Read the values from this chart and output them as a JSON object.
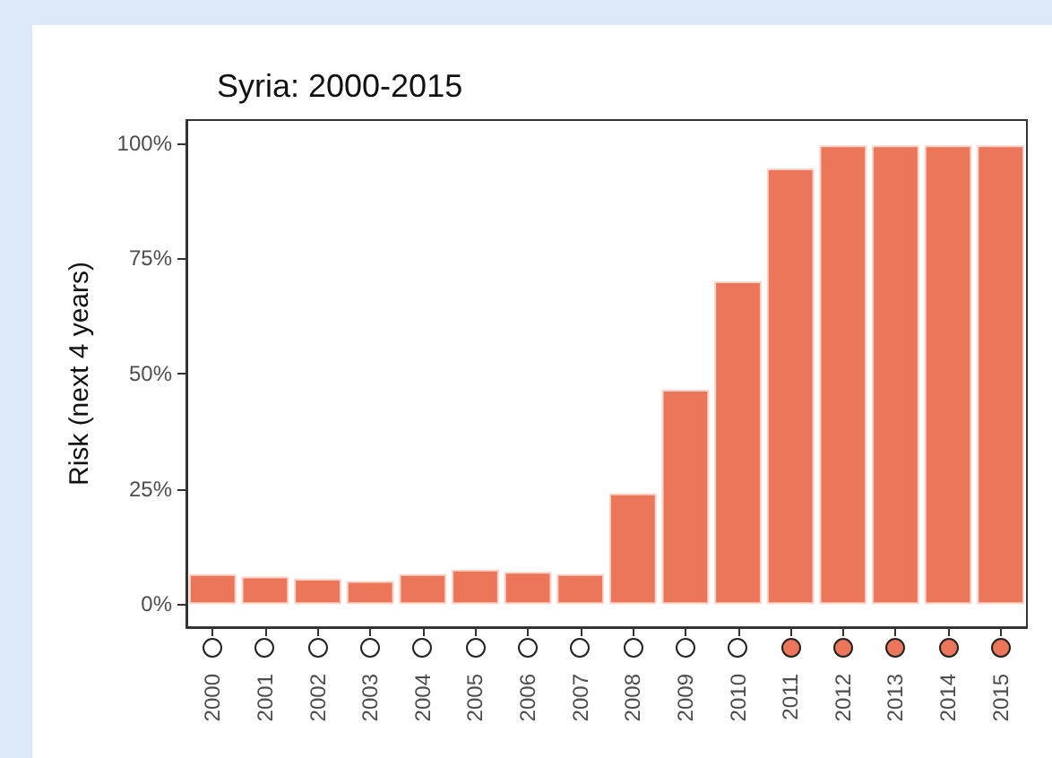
{
  "chart_data": {
    "type": "bar",
    "title": "Syria: 2000-2015",
    "ylabel": "Risk (next 4 years)",
    "categories": [
      "2000",
      "2001",
      "2002",
      "2003",
      "2004",
      "2005",
      "2006",
      "2007",
      "2008",
      "2009",
      "2010",
      "2011",
      "2012",
      "2013",
      "2014",
      "2015"
    ],
    "values": [
      6.5,
      6,
      5.5,
      5,
      6.5,
      7.5,
      7,
      6.5,
      24,
      46.5,
      70,
      94.5,
      99.5,
      99.5,
      99.5,
      99.5
    ],
    "color": "#eb7659",
    "ylim": [
      -5,
      105
    ],
    "yticks": [
      {
        "value": 0,
        "label": "0%"
      },
      {
        "value": 25,
        "label": "25%"
      },
      {
        "value": 50,
        "label": "50%"
      },
      {
        "value": 75,
        "label": "75%"
      },
      {
        "value": 100,
        "label": "100%"
      }
    ],
    "grid": false
  }
}
